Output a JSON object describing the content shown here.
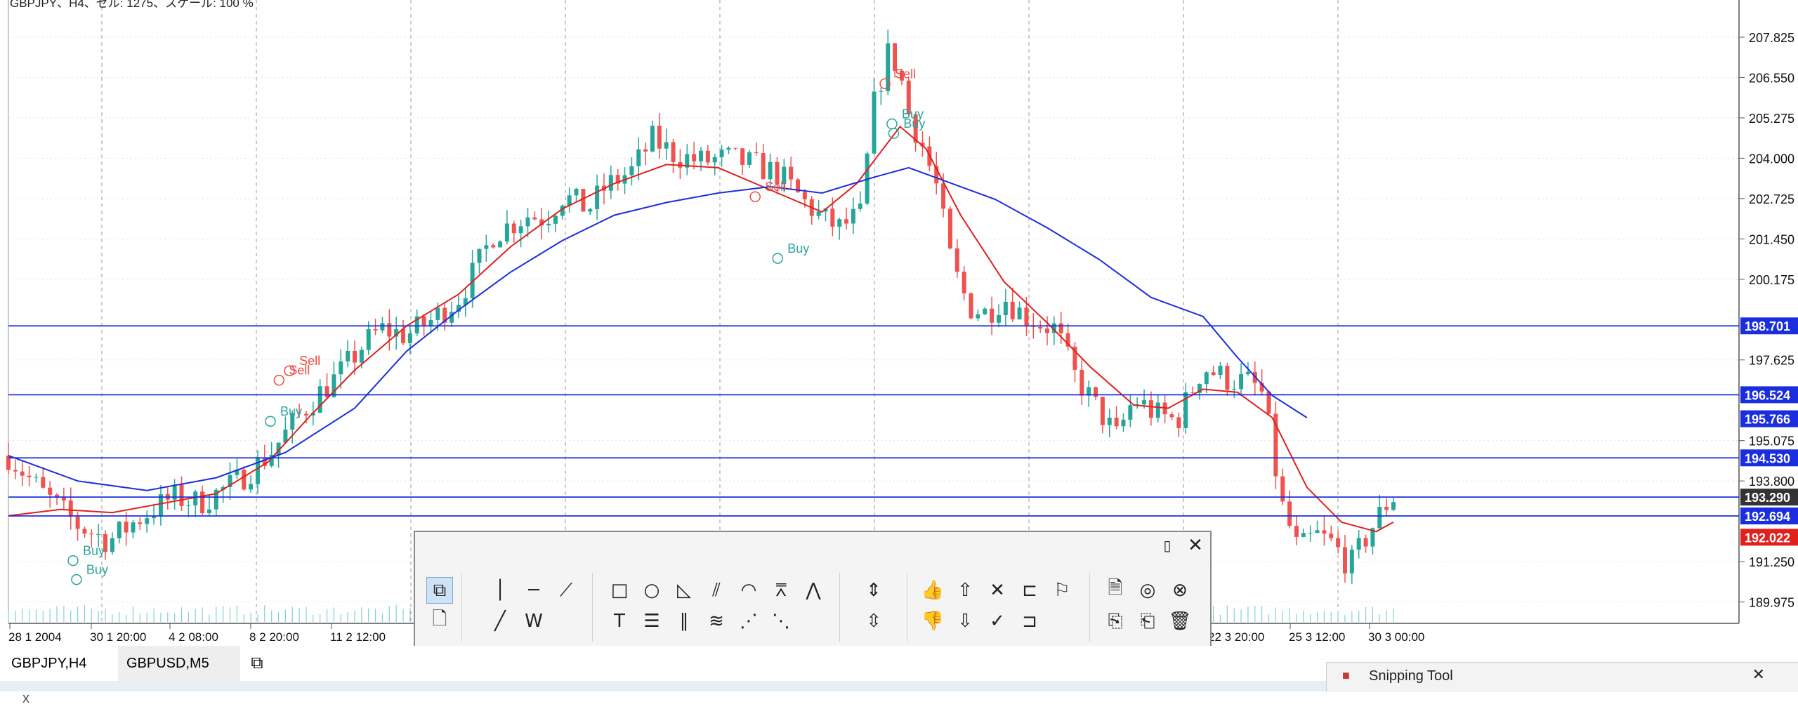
{
  "header": {
    "info": "GBPJPY、H4、ゼル: 1275、スケール: 100 %"
  },
  "chart_data": {
    "type": "candlestick",
    "symbol": "GBPJPY",
    "timeframe": "H4",
    "ylim": [
      189.3,
      209.0
    ],
    "y_ticks": [
      "207.825",
      "206.550",
      "205.275",
      "204.000",
      "202.725",
      "201.450",
      "200.175",
      "197.625",
      "195.075",
      "193.800",
      "191.250",
      "189.975"
    ],
    "x_tick_labels": [
      "28 1 2004",
      "30 1 20:00",
      "4 2 08:00",
      "8 2 20:00",
      "11 2 12:00",
      "22 3 20:00",
      "25 3 12:00",
      "30 3 00:00"
    ],
    "close_path": [
      [
        0,
        194.6
      ],
      [
        20,
        193.4
      ],
      [
        40,
        192.4
      ],
      [
        58,
        191.9
      ],
      [
        75,
        192.6
      ],
      [
        95,
        193.3
      ],
      [
        110,
        193.1
      ],
      [
        130,
        193.7
      ],
      [
        150,
        194.6
      ],
      [
        170,
        196.0
      ],
      [
        180,
        196.6
      ],
      [
        190,
        197.1
      ],
      [
        205,
        198.1
      ],
      [
        215,
        198.6
      ],
      [
        230,
        198.4
      ],
      [
        245,
        198.9
      ],
      [
        260,
        199.6
      ],
      [
        270,
        200.5
      ],
      [
        280,
        201.6
      ],
      [
        300,
        202.2
      ],
      [
        310,
        202.1
      ],
      [
        320,
        202.8
      ],
      [
        335,
        202.4
      ],
      [
        345,
        203.1
      ],
      [
        360,
        203.6
      ],
      [
        372,
        204.6
      ],
      [
        385,
        204.1
      ],
      [
        400,
        203.9
      ],
      [
        415,
        204.0
      ],
      [
        430,
        203.8
      ],
      [
        445,
        203.5
      ],
      [
        460,
        202.6
      ],
      [
        470,
        202.1
      ],
      [
        480,
        201.8
      ],
      [
        492,
        202.2
      ],
      [
        500,
        205.7
      ],
      [
        508,
        207.3
      ],
      [
        514,
        206.9
      ],
      [
        520,
        205.4
      ],
      [
        528,
        204.4
      ],
      [
        536,
        203.1
      ],
      [
        545,
        200.6
      ],
      [
        555,
        199.3
      ],
      [
        565,
        199.1
      ],
      [
        575,
        199.6
      ],
      [
        585,
        199.1
      ],
      [
        595,
        198.8
      ],
      [
        605,
        198.6
      ],
      [
        615,
        197.2
      ],
      [
        625,
        196.4
      ],
      [
        640,
        195.2
      ],
      [
        650,
        196.4
      ],
      [
        663,
        195.9
      ],
      [
        675,
        195.7
      ],
      [
        690,
        197.4
      ],
      [
        705,
        197.0
      ],
      [
        718,
        196.9
      ],
      [
        725,
        196.5
      ],
      [
        735,
        193.1
      ],
      [
        745,
        191.6
      ],
      [
        755,
        192.1
      ],
      [
        765,
        191.8
      ],
      [
        775,
        191.1
      ],
      [
        785,
        192.1
      ],
      [
        795,
        193.0
      ],
      [
        800,
        193.3
      ]
    ],
    "series": [
      {
        "name": "MA fast",
        "color": "#e0201a",
        "points": [
          [
            0,
            192.7
          ],
          [
            30,
            192.9
          ],
          [
            60,
            192.8
          ],
          [
            90,
            193.1
          ],
          [
            120,
            193.4
          ],
          [
            150,
            194.4
          ],
          [
            175,
            195.9
          ],
          [
            200,
            197.3
          ],
          [
            230,
            198.7
          ],
          [
            260,
            199.7
          ],
          [
            290,
            201.2
          ],
          [
            320,
            202.4
          ],
          [
            350,
            203.2
          ],
          [
            380,
            203.8
          ],
          [
            410,
            203.7
          ],
          [
            440,
            203.0
          ],
          [
            470,
            202.3
          ],
          [
            490,
            203.2
          ],
          [
            515,
            205.0
          ],
          [
            530,
            204.3
          ],
          [
            550,
            202.2
          ],
          [
            575,
            200.1
          ],
          [
            600,
            198.8
          ],
          [
            625,
            197.4
          ],
          [
            650,
            196.2
          ],
          [
            670,
            196.1
          ],
          [
            690,
            196.7
          ],
          [
            710,
            196.6
          ],
          [
            730,
            195.8
          ],
          [
            750,
            193.6
          ],
          [
            770,
            192.5
          ],
          [
            790,
            192.2
          ],
          [
            800,
            192.5
          ]
        ]
      },
      {
        "name": "MA slow",
        "color": "#1a2ee0",
        "points": [
          [
            0,
            194.6
          ],
          [
            40,
            193.8
          ],
          [
            80,
            193.5
          ],
          [
            120,
            193.9
          ],
          [
            160,
            194.7
          ],
          [
            200,
            196.1
          ],
          [
            230,
            197.9
          ],
          [
            260,
            199.2
          ],
          [
            290,
            200.4
          ],
          [
            320,
            201.4
          ],
          [
            350,
            202.2
          ],
          [
            380,
            202.6
          ],
          [
            410,
            202.9
          ],
          [
            440,
            203.1
          ],
          [
            470,
            202.9
          ],
          [
            500,
            203.4
          ],
          [
            520,
            203.7
          ],
          [
            540,
            203.3
          ],
          [
            570,
            202.7
          ],
          [
            600,
            201.8
          ],
          [
            630,
            200.8
          ],
          [
            660,
            199.6
          ],
          [
            690,
            199.0
          ],
          [
            710,
            197.7
          ],
          [
            730,
            196.5
          ],
          [
            750,
            195.8
          ]
        ]
      }
    ],
    "hlines": [
      {
        "value": 198.701,
        "label": "198.701",
        "line_color": "#1a2ee0",
        "label_bg": "#1a2ee0"
      },
      {
        "value": 196.524,
        "label": "196.524",
        "line_color": "#1a2ee0",
        "label_bg": "#1a2ee0"
      },
      {
        "value": 194.53,
        "label": "194.530",
        "line_color": "#1a2ee0",
        "label_bg": "#1a2ee0"
      },
      {
        "value": 193.29,
        "label": "193.290",
        "line_color": "#1a2ee0",
        "label_bg": "#333333"
      },
      {
        "value": 192.694,
        "label": "192.694",
        "line_color": "#1a2ee0",
        "label_bg": "#1a2ee0"
      }
    ],
    "price_labels": [
      {
        "value": 195.766,
        "label": "195.766",
        "bg": "#1a2ee0"
      },
      {
        "value": 192.022,
        "label": "192.022",
        "bg": "#e0201a"
      }
    ],
    "signals": [
      {
        "text": "Sell",
        "bar": 512,
        "value": 206.62,
        "color": "#ef4a3e"
      },
      {
        "text": "Sell",
        "bar": 437,
        "value": 203.05,
        "color": "#ef4a3e"
      },
      {
        "text": "Buy",
        "bar": 516,
        "value": 205.35,
        "color": "#2aa39b"
      },
      {
        "text": "Buy",
        "bar": 517,
        "value": 205.05,
        "color": "#2aa39b"
      },
      {
        "text": "Buy",
        "bar": 450,
        "value": 201.1,
        "color": "#2aa39b"
      },
      {
        "text": "Sell",
        "bar": 168,
        "value": 197.55,
        "color": "#ef4a3e"
      },
      {
        "text": "Sell",
        "bar": 162,
        "value": 197.25,
        "color": "#ef4a3e"
      },
      {
        "text": "Buy",
        "bar": 157,
        "value": 195.95,
        "color": "#2aa39b"
      },
      {
        "text": "Buy",
        "bar": 43,
        "value": 191.55,
        "color": "#2aa39b"
      },
      {
        "text": "Buy",
        "bar": 45,
        "value": 190.95,
        "color": "#2aa39b"
      }
    ],
    "colors": {
      "bull": "#26a69a",
      "bear": "#ef5350",
      "grid": "#cccccc"
    }
  },
  "toolbar": {
    "close_icon": "close-icon",
    "pin_icon": "pin-icon"
  },
  "tabs": [
    {
      "label": "GBPJPY,H4",
      "close": "x"
    },
    {
      "label": "GBPUSD,M5"
    }
  ],
  "snipping": {
    "title": "Snipping Tool"
  }
}
